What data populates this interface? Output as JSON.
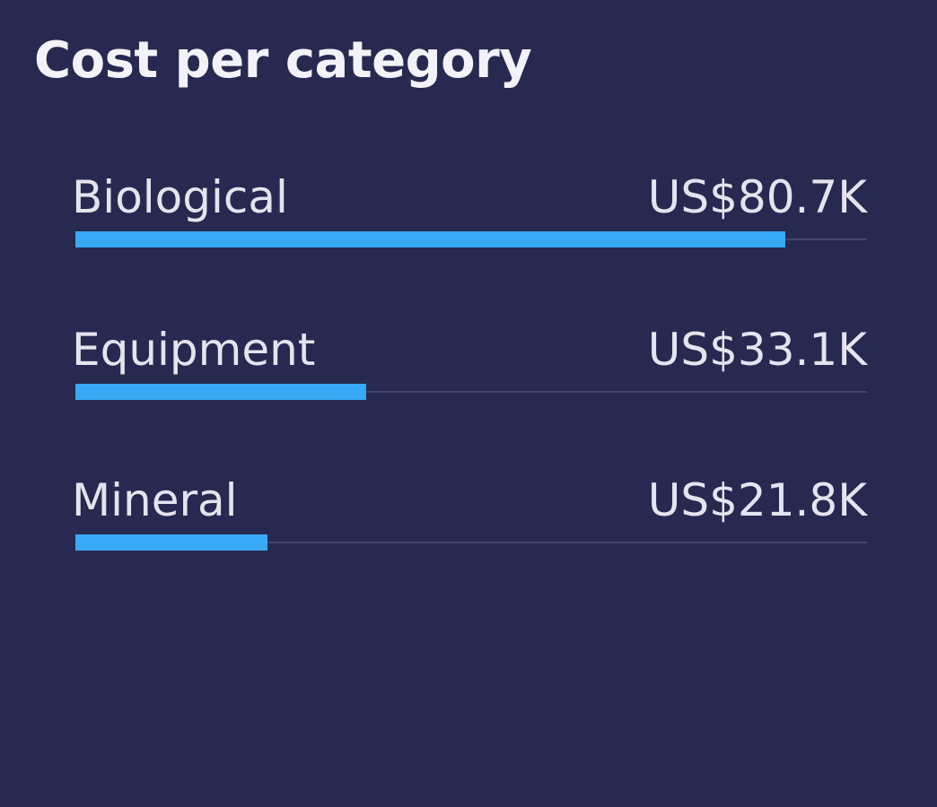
{
  "chart_data": {
    "type": "bar",
    "title": "Cost per category",
    "categories": [
      "Biological",
      "Equipment",
      "Mineral"
    ],
    "series": [
      {
        "values": [
          80.7,
          33.1,
          21.8
        ]
      }
    ],
    "value_labels": [
      "US$80.7K",
      "US$33.1K",
      "US$21.8K"
    ],
    "xlim": [
      0,
      90
    ],
    "orientation": "horizontal",
    "grid": false,
    "legend": "none"
  },
  "colors": {
    "background": "#282950",
    "bar": "#38a9f4",
    "track": "#43456b",
    "text": "#e4e4ee"
  }
}
